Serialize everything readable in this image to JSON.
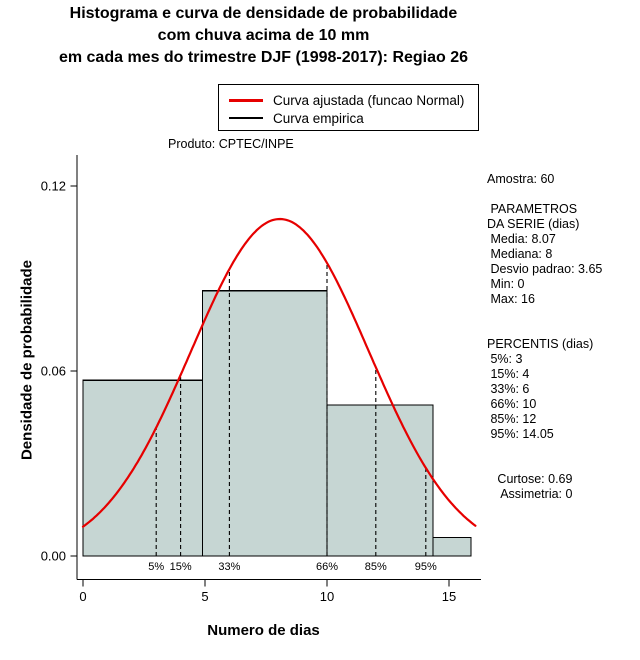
{
  "title_lines": [
    "Histograma e curva de densidade de probabilidade",
    "com chuva acima de 10 mm",
    "em cada mes do trimestre DJF (1998-2017): Regiao 26"
  ],
  "legend": {
    "items": [
      {
        "label": "Curva ajustada (funcao Normal)",
        "color": "#e60000",
        "thickness": 3
      },
      {
        "label": "Curva empirica",
        "color": "#000000",
        "thickness": 2
      }
    ]
  },
  "product_label": "Produto: CPTEC/INPE",
  "stats_panel": {
    "lines": [
      "Amostra: 60",
      "",
      " PARAMETROS",
      "DA SERIE (dias)",
      " Media: 8.07",
      " Mediana: 8",
      " Desvio padrao: 3.65",
      " Min: 0",
      " Max: 16",
      "",
      "",
      "PERCENTIS (dias)",
      " 5%: 3",
      " 15%: 4",
      " 33%: 6",
      " 66%: 10",
      " 85%: 12",
      " 95%: 14.05",
      "",
      "",
      "   Curtose: 0.69",
      "    Assimetria: 0"
    ]
  },
  "chart_data": {
    "type": "histogram+density-line",
    "title": "Histograma e curva de densidade de probabilidade com chuva acima de 10 mm em cada mes do trimestre DJF (1998-2017): Regiao 26",
    "xlabel": "Numero de dias",
    "ylabel": "Densidade de probabilidade",
    "xlim": [
      0,
      16.5
    ],
    "ylim": [
      0,
      0.13
    ],
    "x_ticks": [
      0,
      5,
      10,
      15
    ],
    "y_ticks": [
      0,
      0.06,
      0.12
    ],
    "y_tick_labels": [
      "0.00",
      "0.06",
      "0.12"
    ],
    "grid": false,
    "legend_position": "top-right-inside",
    "histogram_bars": [
      {
        "x0": 0,
        "x1": 4.9,
        "density": 0.057
      },
      {
        "x0": 4.9,
        "x1": 10,
        "density": 0.086
      },
      {
        "x0": 10,
        "x1": 14.35,
        "density": 0.049
      },
      {
        "x0": 14.35,
        "x1": 15.9,
        "density": 0.006
      }
    ],
    "bar_fill_color": "#c6d6d3",
    "bar_border_color": "#000000",
    "normal_curve": {
      "mean": 8.07,
      "sd": 3.65,
      "color": "#e60000",
      "x_min": 0,
      "x_max": 16.15
    },
    "percentile_lines": [
      {
        "label": "5%",
        "x": 3
      },
      {
        "label": "15%",
        "x": 4
      },
      {
        "label": "33%",
        "x": 6
      },
      {
        "label": "66%",
        "x": 10
      },
      {
        "label": "85%",
        "x": 12
      },
      {
        "label": "95%",
        "x": 14.05
      }
    ],
    "sample_size": 60,
    "stats": {
      "media": 8.07,
      "mediana": 8,
      "desvio_padrao": 3.65,
      "min": 0,
      "max": 16,
      "curtose": 0.69,
      "assimetria": 0,
      "percentis": {
        "5%": 3,
        "15%": 4,
        "33%": 6,
        "66%": 10,
        "85%": 12,
        "95%": 14.05
      }
    }
  }
}
